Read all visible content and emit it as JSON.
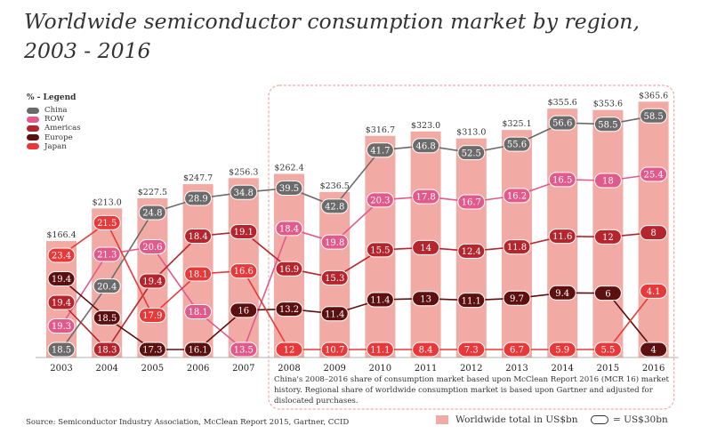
{
  "title": "Worldwide semiconductor consumption market by region, 2003 - 2016",
  "legend": {
    "title": "% - Legend",
    "items": [
      {
        "name": "China",
        "color": "#6b6b6b"
      },
      {
        "name": "ROW",
        "color": "#e05a8c"
      },
      {
        "name": "Americas",
        "color": "#b5252e"
      },
      {
        "name": "Europe",
        "color": "#5c1010"
      },
      {
        "name": "Japan",
        "color": "#e8393a"
      }
    ]
  },
  "note": "China's 2008–2016 share of consumption market based upon McClean Report 2016 (MCR 16) market history. Regional share of worldwide consumption market is based upon Gartner and adjusted for dislocated purchases.",
  "source": "Source: Semiconductor Industry Association, McClean Report 2015, Gartner, CCID",
  "legend_total": "Worldwide total in US$bn",
  "legend_scale": "= US$30bn",
  "colors": {
    "bar": "#f2aba4",
    "highlight_border": "#f2aba4"
  },
  "chart_data": {
    "type": "bar",
    "categories": [
      "2003",
      "2004",
      "2005",
      "2006",
      "2007",
      "2008",
      "2009",
      "2010",
      "2011",
      "2012",
      "2013",
      "2014",
      "2015",
      "2016"
    ],
    "totals": [
      166.4,
      213.0,
      227.5,
      247.7,
      256.3,
      262.4,
      236.5,
      316.7,
      323.0,
      313.0,
      325.1,
      355.6,
      353.6,
      365.6
    ],
    "total_labels": [
      "$166.4",
      "$213.0",
      "$227.5",
      "$247.7",
      "$256.3",
      "$262.4",
      "$236.5",
      "$316.7",
      "$323.0",
      "$313.0",
      "$325.1",
      "$355.6",
      "$353.6",
      "$365.6"
    ],
    "series": [
      {
        "name": "China",
        "values": [
          18.5,
          20.4,
          24.8,
          28.9,
          34.8,
          39.5,
          42.8,
          41.7,
          46.8,
          52.5,
          55.6,
          56.6,
          58.5,
          58.5
        ],
        "labels": [
          "18.5",
          "20.4",
          "24.8",
          "28.9",
          "34.8",
          "39.5",
          "42.8",
          "41.7",
          "46.8",
          "52.5",
          "55.6",
          "56.6",
          "58.5",
          "58.5"
        ]
      },
      {
        "name": "ROW",
        "values": [
          19.3,
          21.3,
          20.6,
          18.1,
          13.5,
          18.4,
          19.8,
          20.3,
          17.8,
          16.7,
          16.2,
          16.5,
          18,
          25.4
        ],
        "labels": [
          "19.3",
          "21.3",
          "20.6",
          "18.1",
          "13.5",
          "18.4",
          "19.8",
          "20.3",
          "17.8",
          "16.7",
          "16.2",
          "16.5",
          "18",
          "25.4"
        ]
      },
      {
        "name": "Americas",
        "values": [
          19.4,
          18.3,
          19.4,
          18.4,
          19.1,
          16.9,
          15.3,
          15.5,
          14,
          12.4,
          11.8,
          11.6,
          12,
          8
        ],
        "labels": [
          "19.4",
          "18.3",
          "19.4",
          "18.4",
          "19.1",
          "16.9",
          "15.3",
          "15.5",
          "14",
          "12.4",
          "11.8",
          "11.6",
          "12",
          "8"
        ]
      },
      {
        "name": "Europe",
        "values": [
          19.4,
          18.5,
          17.3,
          16.1,
          16,
          13.2,
          11.4,
          11.4,
          13,
          11.1,
          9.7,
          9.4,
          6,
          4
        ],
        "labels": [
          "19.4",
          "18.5",
          "17.3",
          "16.1",
          "16",
          "13.2",
          "11.4",
          "11.4",
          "13",
          "11.1",
          "9.7",
          "9.4",
          "6",
          "4"
        ]
      },
      {
        "name": "Japan",
        "values": [
          23.4,
          21.5,
          17.9,
          18.1,
          16.6,
          12,
          10.7,
          11.1,
          8.4,
          7.3,
          6.7,
          5.9,
          5.5,
          4.1
        ],
        "labels": [
          "23.4",
          "21.5",
          "17.9",
          "18.1",
          "16.6",
          "12",
          "10.7",
          "11.1",
          "8.4",
          "7.3",
          "6.7",
          "5.9",
          "5.5",
          "4.1"
        ]
      }
    ],
    "xlabel": "",
    "ylabel": ""
  }
}
